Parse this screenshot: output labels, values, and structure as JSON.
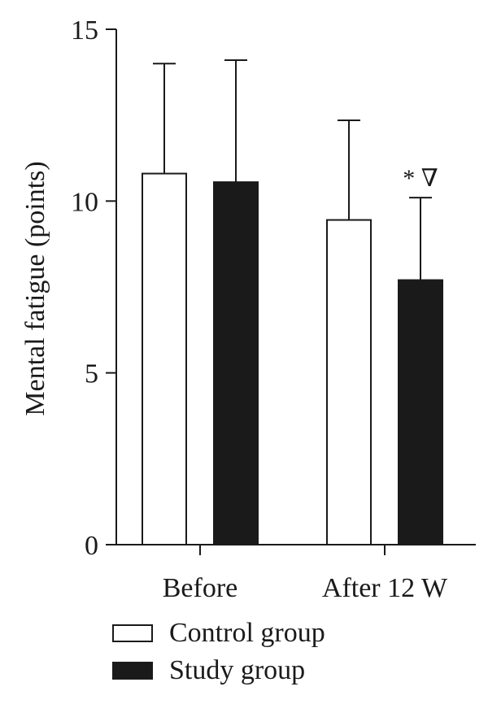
{
  "chart_data": {
    "type": "bar",
    "categories": [
      "Before",
      "After 12 W"
    ],
    "ylabel": "Mental fatigue (points)",
    "ylim": [
      0,
      15
    ],
    "yticks": [
      0,
      5,
      10,
      15
    ],
    "grid": false,
    "legend_position": "bottom-left",
    "series": [
      {
        "name": "Control group",
        "values": [
          10.8,
          9.45
        ],
        "errors": [
          3.2,
          2.9
        ],
        "fill": "#ffffff"
      },
      {
        "name": "Study group",
        "values": [
          10.55,
          7.7
        ],
        "errors": [
          3.55,
          2.4
        ],
        "fill": "#1a1a1a"
      }
    ],
    "annotations": [
      {
        "category": "After 12 W",
        "series": "Study group",
        "text": "* ∇"
      }
    ]
  }
}
